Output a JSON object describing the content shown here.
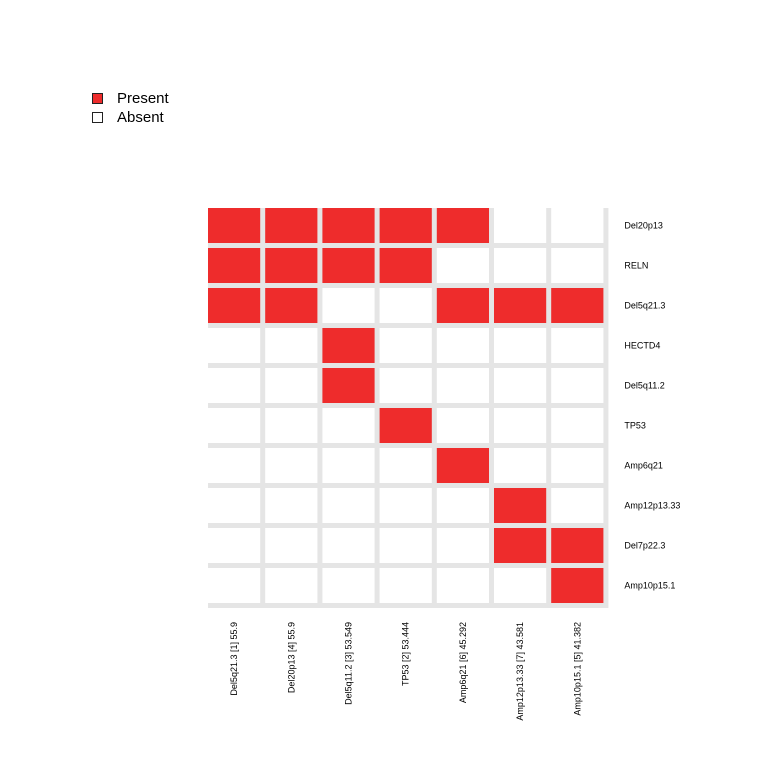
{
  "legend": {
    "present": {
      "label": "Present",
      "color": "#ee2c2c"
    },
    "absent": {
      "label": "Absent",
      "color": "#ffffff"
    }
  },
  "colors": {
    "present": "#ee2c2c",
    "absent": "#ffffff",
    "grid": "#e5e5e5"
  },
  "chart_data": {
    "type": "heatmap",
    "title": "",
    "rows": [
      "Del20p13",
      "RELN",
      "Del5q21.3",
      "HECTD4",
      "Del5q11.2",
      "TP53",
      "Amp6q21",
      "Amp12p13.33",
      "Del7p22.3",
      "Amp10p15.1"
    ],
    "columns": [
      "Del5q21.3 [1] 55.9",
      "Del20p13 [4] 55.9",
      "Del5q11.2 [3] 53.549",
      "TP53 [2] 53.444",
      "Amp6q21 [6] 45.292",
      "Amp12p13.33 [7] 43.581",
      "Amp10p15.1 [5] 41.382"
    ],
    "values": [
      [
        1,
        1,
        1,
        1,
        1,
        0,
        0
      ],
      [
        1,
        1,
        1,
        1,
        0,
        0,
        0
      ],
      [
        1,
        1,
        0,
        0,
        1,
        1,
        1
      ],
      [
        0,
        0,
        1,
        0,
        0,
        0,
        0
      ],
      [
        0,
        0,
        1,
        0,
        0,
        0,
        0
      ],
      [
        0,
        0,
        0,
        1,
        0,
        0,
        0
      ],
      [
        0,
        0,
        0,
        0,
        1,
        0,
        0
      ],
      [
        0,
        0,
        0,
        0,
        0,
        1,
        0
      ],
      [
        0,
        0,
        0,
        0,
        0,
        1,
        1
      ],
      [
        0,
        0,
        0,
        0,
        0,
        0,
        1
      ]
    ],
    "value_labels": {
      "1": "Present",
      "0": "Absent"
    },
    "legend_position": "top-left"
  }
}
